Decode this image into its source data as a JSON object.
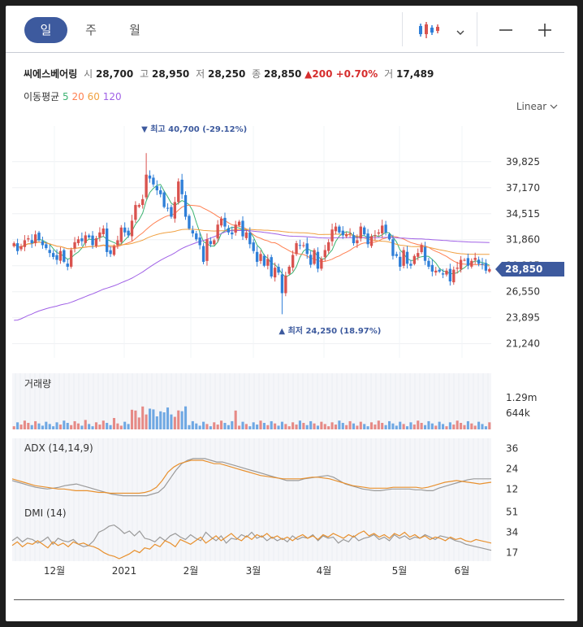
{
  "periods": [
    "일",
    "주",
    "월"
  ],
  "active_period": 0,
  "tools": [
    "candlestick-icon",
    "chevron-down-icon",
    "zoom-out-icon",
    "zoom-in-icon"
  ],
  "stock": {
    "name": "씨에스베어링",
    "open_label": "시",
    "open": "28,700",
    "high_label": "고",
    "high": "28,950",
    "low_label": "저",
    "low": "28,250",
    "close_label": "종",
    "close": "28,850",
    "change": "▲200 +0.70%",
    "volume_label": "거",
    "volume": "17,489"
  },
  "ma_legend": {
    "label": "이동평균",
    "periods": [
      "5",
      "20",
      "60",
      "120"
    ],
    "colors": [
      "#3cb371",
      "#ff7f50",
      "#f0a040",
      "#a061e6"
    ]
  },
  "scale_mode": "Linear",
  "colors": {
    "up": "#d9534f",
    "down": "#2f7fd8",
    "badge": "#3d5a9e",
    "adx": "#e8912f",
    "gray": "#9a9a9a"
  },
  "chart_data": {
    "type": "candlestick",
    "x_tick_labels": [
      "12월",
      "2021",
      "2월",
      "3월",
      "4월",
      "5월",
      "6월"
    ],
    "y_ticks": [
      "39,825",
      "37,170",
      "34,515",
      "31,860",
      "29,205",
      "26,550",
      "23,895",
      "21,240"
    ],
    "ylim": [
      19800,
      41800
    ],
    "last_price": "28,850",
    "last_value": 28850,
    "high_annotation": "최고 40,700 (-29.12%)",
    "high_value": 40700,
    "low_annotation": "최저 24,250 (18.97%)",
    "low_value": 24250,
    "close": [
      31500,
      30700,
      31200,
      31800,
      32000,
      31500,
      32400,
      31800,
      31300,
      31000,
      30500,
      30100,
      29800,
      30700,
      29600,
      29100,
      30800,
      31600,
      31900,
      31700,
      32300,
      32100,
      31300,
      32000,
      32600,
      33000,
      30600,
      30400,
      31200,
      31800,
      33100,
      32600,
      32300,
      33800,
      35400,
      35400,
      36000,
      38500,
      38100,
      37500,
      36900,
      36500,
      35200,
      35100,
      34200,
      35700,
      37800,
      36500,
      34200,
      33000,
      32500,
      31900,
      31300,
      29600,
      31900,
      31400,
      31800,
      33400,
      34000,
      33200,
      32600,
      32400,
      33400,
      33700,
      32200,
      32600,
      31400,
      30700,
      29600,
      30400,
      29200,
      29900,
      28100,
      29000,
      28500,
      26400,
      28200,
      29100,
      30300,
      31500,
      31300,
      31300,
      30400,
      29300,
      30800,
      28900,
      29900,
      30800,
      31600,
      32900,
      33200,
      32600,
      32300,
      32400,
      32500,
      31500,
      31800,
      33200,
      32400,
      31400,
      32200,
      32300,
      32600,
      33300,
      32600,
      31900,
      30200,
      30200,
      29100,
      30800,
      29400,
      29200,
      30200,
      30500,
      31300,
      29700,
      29100,
      28600,
      28700,
      28600,
      28300,
      28700,
      27600,
      28800,
      29000,
      29800,
      29800,
      29200,
      29700,
      30000,
      29400,
      29300,
      28700,
      28850
    ],
    "volume_max_label": "1.29m",
    "volume_mid_label": "644k",
    "adx": {
      "label": "ADX (14,14,9)",
      "ticks": [
        "36",
        "24",
        "12"
      ],
      "ylim": [
        3,
        42
      ],
      "series1": [
        17,
        16,
        15,
        14,
        13,
        12.5,
        12,
        12.5,
        13,
        14,
        14.5,
        15,
        14,
        13,
        12,
        11,
        10,
        9,
        8.5,
        8,
        8,
        8,
        8,
        8,
        9,
        10,
        13,
        18,
        23,
        27,
        29,
        30,
        30,
        30,
        29,
        28,
        28,
        27,
        26,
        25,
        24,
        23,
        22,
        21,
        20,
        19,
        18,
        17,
        17,
        17,
        18,
        18.5,
        19,
        19.5,
        20,
        19,
        17,
        15,
        14,
        13,
        12,
        11.5,
        11,
        11,
        11.5,
        12,
        12,
        12,
        12,
        11.5,
        11.5,
        11,
        11,
        12.5,
        13.5,
        14.5,
        15.5,
        16.5,
        17.5,
        18,
        18,
        18,
        18
      ],
      "series2": [
        18,
        17,
        16,
        15,
        14,
        13.5,
        13,
        12.5,
        12,
        12,
        11.5,
        11,
        11,
        11,
        10.5,
        10,
        10,
        9.5,
        9.5,
        9.5,
        9.5,
        9.5,
        9.5,
        10,
        11,
        13,
        17,
        22,
        25,
        27,
        28,
        29,
        29,
        29,
        28,
        27,
        27,
        26,
        25,
        24,
        23,
        22,
        21,
        20,
        19.5,
        19,
        18.5,
        18,
        18,
        18,
        18,
        18.5,
        19,
        19,
        18.5,
        18,
        17,
        16,
        15,
        14,
        13.5,
        13,
        12.5,
        12.5,
        12.5,
        12.5,
        13,
        13,
        13,
        13,
        13,
        12.5,
        13,
        14,
        15,
        16,
        16.5,
        17,
        16.5,
        16,
        15.5,
        15,
        15.5,
        16
      ]
    },
    "dmi": {
      "label": "DMI (14)",
      "ticks": [
        "51",
        "34",
        "17"
      ],
      "ylim": [
        10,
        58
      ],
      "series1": [
        27,
        30,
        26,
        29,
        28,
        25,
        27,
        30,
        24,
        29,
        27,
        26,
        28,
        24,
        22,
        23,
        27,
        34,
        36,
        39,
        40,
        37,
        33,
        35,
        31,
        35,
        29,
        28,
        26,
        30,
        27,
        31,
        33,
        30,
        28,
        32,
        29,
        27,
        34,
        30,
        27,
        31,
        25,
        29,
        28,
        32,
        30,
        34,
        29,
        31,
        27,
        30,
        27,
        29,
        26,
        31,
        28,
        30,
        29,
        32,
        27,
        31,
        29,
        30,
        25,
        28,
        26,
        31,
        27,
        29,
        30,
        32,
        28,
        30,
        27,
        32,
        29,
        31,
        28,
        30,
        29,
        32,
        30,
        28,
        31,
        30,
        29,
        27,
        26,
        24,
        23,
        22,
        21,
        20,
        19
      ],
      "series2": [
        23,
        26,
        22,
        25,
        24,
        27,
        24,
        21,
        26,
        23,
        25,
        22,
        26,
        24,
        25,
        23,
        22,
        20,
        17,
        15,
        14,
        12,
        14,
        16,
        19,
        17,
        21,
        20,
        24,
        22,
        27,
        25,
        22,
        28,
        26,
        24,
        27,
        30,
        25,
        28,
        31,
        27,
        30,
        33,
        29,
        27,
        31,
        28,
        32,
        30,
        33,
        29,
        31,
        28,
        30,
        27,
        30,
        32,
        29,
        31,
        28,
        32,
        30,
        33,
        31,
        29,
        32,
        30,
        33,
        35,
        31,
        33,
        30,
        32,
        29,
        33,
        31,
        34,
        30,
        32,
        29,
        31,
        28,
        30,
        29,
        27,
        30,
        28,
        29,
        27,
        26,
        28,
        27,
        26,
        25
      ]
    }
  }
}
